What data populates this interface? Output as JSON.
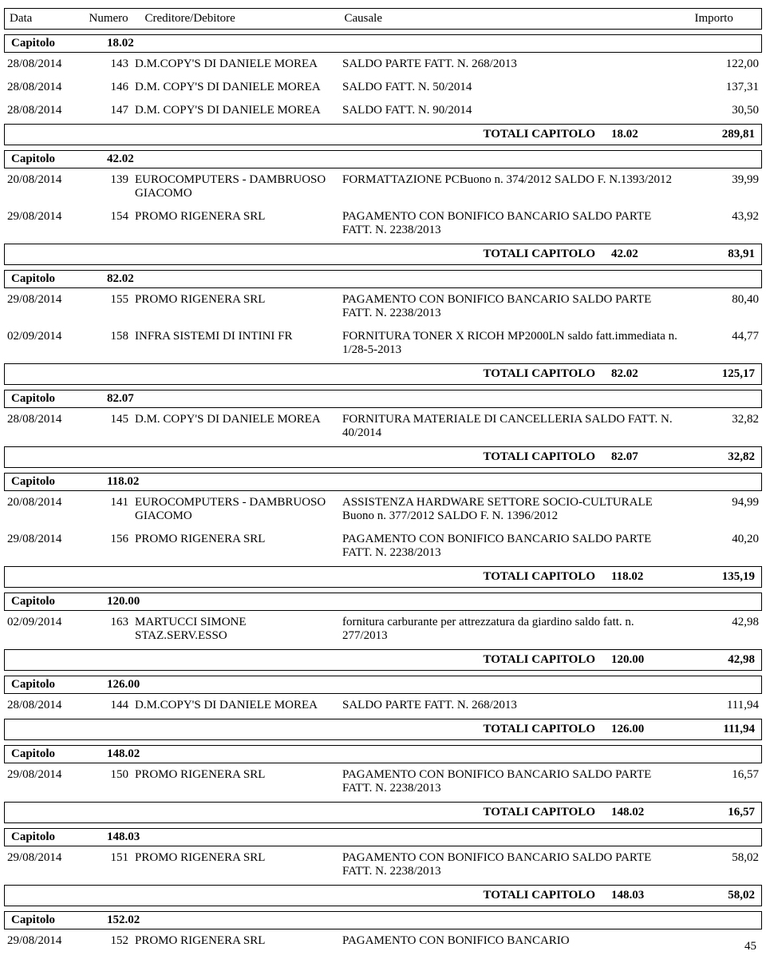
{
  "headers": {
    "data": "Data",
    "numero": "Numero",
    "creditore": "Creditore/Debitore",
    "causale": "Causale",
    "importo": "Importo"
  },
  "capitolo_label": "Capitolo",
  "total_label": "TOTALI CAPITOLO",
  "page_number": "45",
  "sections": [
    {
      "code": "18.02",
      "rows": [
        {
          "data": "28/08/2014",
          "num": "143",
          "cred": "D.M.COPY'S DI DANIELE MOREA",
          "caus": "SALDO PARTE FATT. N. 268/2013",
          "imp": "122,00"
        },
        {
          "data": "28/08/2014",
          "num": "146",
          "cred": "D.M. COPY'S DI DANIELE MOREA",
          "caus": "SALDO FATT. N. 50/2014",
          "imp": "137,31"
        },
        {
          "data": "28/08/2014",
          "num": "147",
          "cred": "D.M. COPY'S DI DANIELE MOREA",
          "caus": "SALDO FATT. N. 90/2014",
          "imp": "30,50"
        }
      ],
      "total": "289,81"
    },
    {
      "code": "42.02",
      "rows": [
        {
          "data": "20/08/2014",
          "num": "139",
          "cred": "EUROCOMPUTERS - DAMBRUOSO GIACOMO",
          "caus": "FORMATTAZIONE PCBuono n. 374/2012 SALDO F. N.1393/2012",
          "imp": "39,99"
        },
        {
          "data": "29/08/2014",
          "num": "154",
          "cred": "PROMO RIGENERA SRL",
          "caus": "PAGAMENTO CON BONIFICO BANCARIO SALDO PARTE FATT. N. 2238/2013",
          "imp": "43,92"
        }
      ],
      "total": "83,91"
    },
    {
      "code": "82.02",
      "rows": [
        {
          "data": "29/08/2014",
          "num": "155",
          "cred": "PROMO RIGENERA SRL",
          "caus": "PAGAMENTO CON BONIFICO BANCARIO SALDO PARTE FATT. N. 2238/2013",
          "imp": "80,40"
        },
        {
          "data": "02/09/2014",
          "num": "158",
          "cred": "INFRA SISTEMI DI INTINI FR",
          "caus": "FORNITURA TONER X RICOH MP2000LN saldo fatt.immediata n. 1/28-5-2013",
          "imp": "44,77"
        }
      ],
      "total": "125,17"
    },
    {
      "code": "82.07",
      "rows": [
        {
          "data": "28/08/2014",
          "num": "145",
          "cred": "D.M. COPY'S DI DANIELE MOREA",
          "caus": "FORNITURA MATERIALE DI CANCELLERIA SALDO FATT. N. 40/2014",
          "imp": "32,82"
        }
      ],
      "total": "32,82"
    },
    {
      "code": "118.02",
      "rows": [
        {
          "data": "20/08/2014",
          "num": "141",
          "cred": "EUROCOMPUTERS - DAMBRUOSO GIACOMO",
          "caus": "ASSISTENZA HARDWARE SETTORE SOCIO-CULTURALE Buono n. 377/2012 SALDO F. N. 1396/2012",
          "imp": "94,99"
        },
        {
          "data": "29/08/2014",
          "num": "156",
          "cred": "PROMO RIGENERA SRL",
          "caus": "PAGAMENTO CON BONIFICO BANCARIO SALDO PARTE FATT. N. 2238/2013",
          "imp": "40,20"
        }
      ],
      "total": "135,19"
    },
    {
      "code": "120.00",
      "rows": [
        {
          "data": "02/09/2014",
          "num": "163",
          "cred": "MARTUCCI SIMONE STAZ.SERV.ESSO",
          "caus": "fornitura carburante per attrezzatura da giardino saldo fatt. n. 277/2013",
          "imp": "42,98"
        }
      ],
      "total": "42,98"
    },
    {
      "code": "126.00",
      "rows": [
        {
          "data": "28/08/2014",
          "num": "144",
          "cred": "D.M.COPY'S DI DANIELE MOREA",
          "caus": "SALDO PARTE FATT. N. 268/2013",
          "imp": "111,94"
        }
      ],
      "total": "111,94"
    },
    {
      "code": "148.02",
      "rows": [
        {
          "data": "29/08/2014",
          "num": "150",
          "cred": "PROMO RIGENERA SRL",
          "caus": "PAGAMENTO CON BONIFICO BANCARIO SALDO PARTE FATT. N. 2238/2013",
          "imp": "16,57"
        }
      ],
      "total": "16,57"
    },
    {
      "code": "148.03",
      "rows": [
        {
          "data": "29/08/2014",
          "num": "151",
          "cred": "PROMO RIGENERA SRL",
          "caus": "PAGAMENTO CON BONIFICO BANCARIO SALDO PARTE FATT. N. 2238/2013",
          "imp": "58,02"
        }
      ],
      "total": "58,02"
    },
    {
      "code": "152.02",
      "rows": [
        {
          "data": "29/08/2014",
          "num": "152",
          "cred": "PROMO RIGENERA SRL",
          "caus": "PAGAMENTO CON BONIFICO BANCARIO",
          "imp": ""
        }
      ],
      "total": null
    }
  ]
}
